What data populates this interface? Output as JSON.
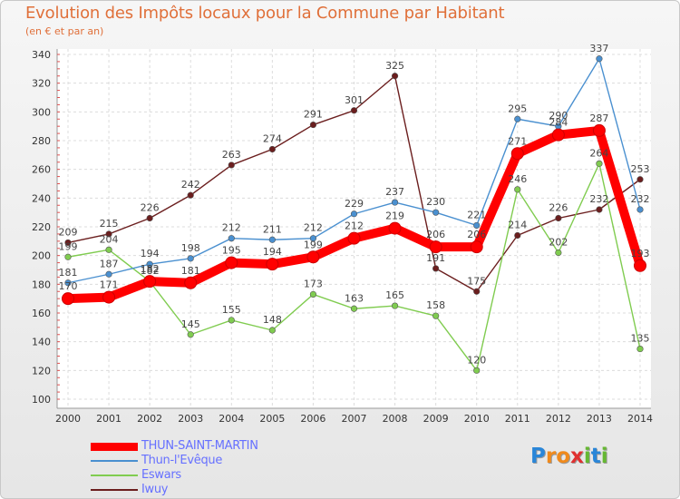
{
  "title": "Evolution des Impôts locaux pour la Commune par Habitant",
  "subtitle": "(en € et par an)",
  "logo": {
    "text": "Proxiti",
    "letters": [
      {
        "ch": "P",
        "color": "#2a86d8"
      },
      {
        "ch": "r",
        "color": "#f08a1c"
      },
      {
        "ch": "o",
        "color": "#f08a1c"
      },
      {
        "ch": "x",
        "color": "#e03030"
      },
      {
        "ch": "i",
        "color": "#66b832"
      },
      {
        "ch": "t",
        "color": "#2a86d8"
      },
      {
        "ch": "i",
        "color": "#66b832"
      }
    ]
  },
  "chart_data": {
    "type": "line",
    "x": [
      "2000",
      "2001",
      "2002",
      "2003",
      "2004",
      "2005",
      "2006",
      "2007",
      "2008",
      "2009",
      "2010",
      "2011",
      "2012",
      "2013",
      "2014"
    ],
    "ylim": [
      100,
      340
    ],
    "yticks": [
      100,
      120,
      140,
      160,
      180,
      200,
      220,
      240,
      260,
      280,
      300,
      320,
      340
    ],
    "grid": true,
    "legend": "bottom-left",
    "series": [
      {
        "name": "THUN-SAINT-MARTIN",
        "color": "#ff0000",
        "values": [
          170,
          171,
          182,
          181,
          195,
          194,
          199,
          212,
          219,
          206,
          206,
          271,
          284,
          287,
          193
        ]
      },
      {
        "name": "Thun-l'Evêque",
        "color": "#4a90d0",
        "values": [
          181,
          187,
          194,
          198,
          212,
          211,
          212,
          229,
          237,
          230,
          221,
          295,
          290,
          337,
          232
        ]
      },
      {
        "name": "Eswars",
        "color": "#80cc50",
        "values": [
          199,
          204,
          182,
          145,
          155,
          148,
          173,
          163,
          165,
          158,
          120,
          246,
          202,
          264,
          135
        ]
      },
      {
        "name": "Iwuy",
        "color": "#6b1e1e",
        "values": [
          209,
          215,
          226,
          242,
          263,
          274,
          291,
          301,
          325,
          191,
          175,
          214,
          226,
          232,
          253
        ]
      }
    ]
  }
}
